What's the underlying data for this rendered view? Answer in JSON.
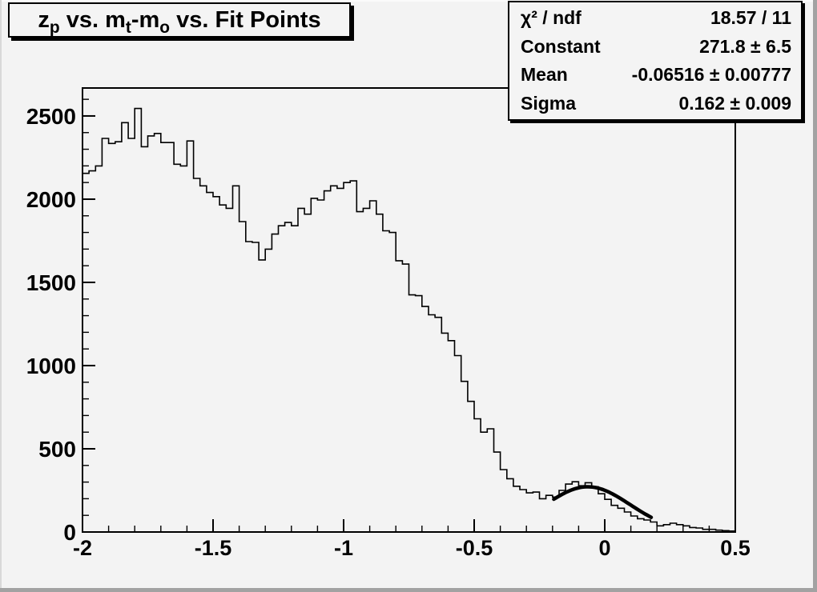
{
  "window": {
    "background": "#f3f3f3",
    "frame_line_color": "#000000",
    "bevel_dark": "#a2a2a2",
    "bevel_light": "#fbfbfb"
  },
  "title_box": {
    "title_plain": "z_p vs. m_t-m_o vs. Fit Points",
    "parts": [
      {
        "text": "z"
      },
      {
        "sub": "p"
      },
      {
        "text": " vs. m"
      },
      {
        "sub": "t"
      },
      {
        "text": "-m"
      },
      {
        "sub": "o"
      },
      {
        "text": " vs. Fit Points"
      }
    ]
  },
  "stats_box": {
    "rows": [
      {
        "label": "χ² / ndf",
        "value": "18.57 / 11"
      },
      {
        "label": "Constant",
        "value": "271.8 ± 6.5"
      },
      {
        "label": "Mean",
        "value": "-0.06516 ± 0.00777"
      },
      {
        "label": "Sigma",
        "value": "0.162 ± 0.009"
      }
    ]
  },
  "chart_data": {
    "type": "bar",
    "style": "step-histogram",
    "title": "z_p vs. m_t-m_o vs. Fit Points",
    "xlabel": "",
    "ylabel": "",
    "xlim": [
      -2,
      0.5
    ],
    "ylim": [
      0,
      2668
    ],
    "grid": false,
    "legend": false,
    "x_tick_labels": [
      "-2",
      "-1.5",
      "-1",
      "-0.5",
      "0",
      "0.5"
    ],
    "x_tick_values": [
      -2,
      -1.5,
      -1,
      -0.5,
      0,
      0.5
    ],
    "x_minor_step": 0.1,
    "y_tick_labels": [
      "0",
      "500",
      "1000",
      "1500",
      "2000",
      "2500"
    ],
    "y_tick_values": [
      0,
      500,
      1000,
      1500,
      2000,
      2500
    ],
    "y_minor_step": 100,
    "bins": {
      "start": -2,
      "width": 0.025,
      "values": [
        2155,
        2170,
        2200,
        2365,
        2335,
        2345,
        2460,
        2365,
        2545,
        2315,
        2380,
        2395,
        2340,
        2340,
        2210,
        2200,
        2350,
        2125,
        2080,
        2040,
        2015,
        1965,
        1945,
        2080,
        1865,
        1745,
        1740,
        1635,
        1700,
        1790,
        1840,
        1860,
        1840,
        1945,
        1910,
        2005,
        1995,
        2050,
        2080,
        2065,
        2100,
        2110,
        1925,
        1945,
        1990,
        1910,
        1810,
        1800,
        1630,
        1610,
        1425,
        1420,
        1355,
        1305,
        1290,
        1195,
        1150,
        1060,
        905,
        785,
        680,
        600,
        620,
        480,
        375,
        320,
        275,
        255,
        235,
        240,
        200,
        220,
        210,
        250,
        288,
        302,
        278,
        296,
        272,
        230,
        196,
        160,
        143,
        120,
        96,
        80,
        72,
        60,
        37,
        44,
        53,
        44,
        37,
        27,
        24,
        16,
        16,
        11,
        8,
        6
      ]
    },
    "fit": {
      "type": "gaussian",
      "chi2": 18.57,
      "ndf": 11,
      "constant": 271.8,
      "constant_err": 6.5,
      "mean": -0.06516,
      "mean_err": 0.00777,
      "sigma": 0.162,
      "sigma_err": 0.009,
      "draw_range": [
        -0.195,
        0.178
      ],
      "line_width": 4.5
    }
  }
}
